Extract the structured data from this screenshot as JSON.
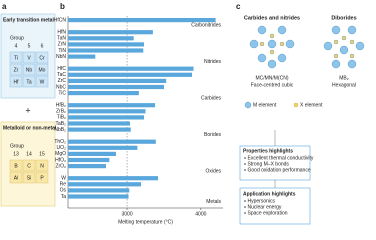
{
  "panel_a": {
    "label": "a",
    "early_title": "Early transition metal",
    "early_group": "Group",
    "early_groups": [
      "4",
      "5",
      "6"
    ],
    "early_elements": [
      [
        "Ti",
        "V",
        "Cr"
      ],
      [
        "Zr",
        "Nb",
        "Mo"
      ],
      [
        "Hf",
        "Ta",
        "W"
      ]
    ],
    "plus": "+",
    "nonmetal_title": "Metalloid or non-metal",
    "nonmetal_group": "Group",
    "nonmetal_groups": [
      "13",
      "14",
      "15"
    ],
    "nonmetal_elements": [
      [
        "B",
        "C",
        "N"
      ],
      [
        "Al",
        "Si",
        "P"
      ]
    ]
  },
  "chart_data": {
    "label": "b",
    "type": "bar",
    "x_label": "Melting temperature (°C)",
    "xlim": [
      2200,
      4300
    ],
    "xticks": [
      3000,
      4000
    ],
    "reference_line": 3000,
    "color": "#5aa7dc",
    "groups": [
      {
        "name": "Carbonitrides",
        "categories": [
          "HfCN"
        ],
        "values": [
          4200
        ]
      },
      {
        "name": "Nitrides",
        "categories": [
          "HfN",
          "TaN",
          "ZrN",
          "TiN",
          "NbN"
        ],
        "values": [
          3350,
          3090,
          3230,
          3220,
          2570
        ]
      },
      {
        "name": "Carbides",
        "categories": [
          "HfC",
          "TaC",
          "ZrC",
          "NbC",
          "TiC"
        ],
        "values": [
          3900,
          3880,
          3530,
          3500,
          3160
        ]
      },
      {
        "name": "Borides",
        "categories": [
          "HfB₂",
          "ZrB₂",
          "TiB₂",
          "TaB₂",
          "NbB₂"
        ],
        "values": [
          3380,
          3250,
          3230,
          3040,
          3050
        ]
      },
      {
        "name": "Oxides",
        "categories": [
          "ThO₂",
          "UO₂",
          "MgO",
          "HfO₂",
          "ZrO₂"
        ],
        "values": [
          3390,
          3140,
          2850,
          2760,
          2715
        ]
      },
      {
        "name": "Metals",
        "categories": [
          "W",
          "Re",
          "Os",
          "Ta"
        ],
        "values": [
          3420,
          3190,
          3030,
          3020
        ]
      }
    ]
  },
  "panel_c": {
    "label": "c",
    "structures": [
      {
        "title": "Carbides and nitrides",
        "formula": "MC/MN/M(CN)",
        "lattice": "Face-centred cubic"
      },
      {
        "title": "Diborides",
        "formula": "MB₂",
        "lattice": "Hexagonal"
      }
    ],
    "legend": [
      "M element",
      "X element"
    ],
    "properties": {
      "title": "Properties highlights",
      "items": [
        "Excellent thermal conductivity",
        "Strong M–X bonds",
        "Good oxidation performance"
      ]
    },
    "applications": {
      "title": "Application highlights",
      "items": [
        "Hypersonics",
        "Nuclear energy",
        "Space exploration"
      ]
    }
  }
}
